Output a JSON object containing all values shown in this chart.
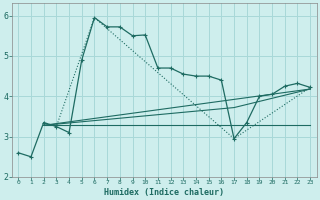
{
  "xlabel": "Humidex (Indice chaleur)",
  "background_color": "#ceeeed",
  "grid_color": "#a8d8d8",
  "line_color": "#1e6b62",
  "xlim": [
    -0.5,
    23.5
  ],
  "ylim": [
    2,
    6.3
  ],
  "xticks": [
    0,
    1,
    2,
    3,
    4,
    5,
    6,
    7,
    8,
    9,
    10,
    11,
    12,
    13,
    14,
    15,
    16,
    17,
    18,
    19,
    20,
    21,
    22,
    23
  ],
  "yticks": [
    2,
    3,
    4,
    5,
    6
  ],
  "line1_x": [
    0,
    1,
    2,
    3,
    4,
    5,
    6,
    7,
    8,
    9,
    10,
    11,
    12,
    13,
    14,
    15,
    16,
    17,
    18,
    19,
    20,
    21,
    22,
    23
  ],
  "line1_y": [
    2.6,
    2.5,
    3.35,
    3.25,
    3.1,
    4.9,
    5.95,
    5.72,
    5.72,
    5.5,
    5.52,
    4.7,
    4.7,
    4.55,
    4.5,
    4.5,
    4.4,
    2.95,
    3.35,
    4.0,
    4.05,
    4.25,
    4.32,
    4.22
  ],
  "line2_x": [
    2,
    3,
    6,
    17,
    23
  ],
  "line2_y": [
    3.35,
    3.25,
    5.95,
    2.95,
    4.22
  ],
  "line3_x": [
    2,
    23
  ],
  "line3_y": [
    3.28,
    4.18
  ],
  "line4_x": [
    2,
    23
  ],
  "line4_y": [
    3.28,
    3.28
  ],
  "line5_x": [
    2,
    17,
    23
  ],
  "line5_y": [
    3.28,
    3.72,
    4.18
  ]
}
